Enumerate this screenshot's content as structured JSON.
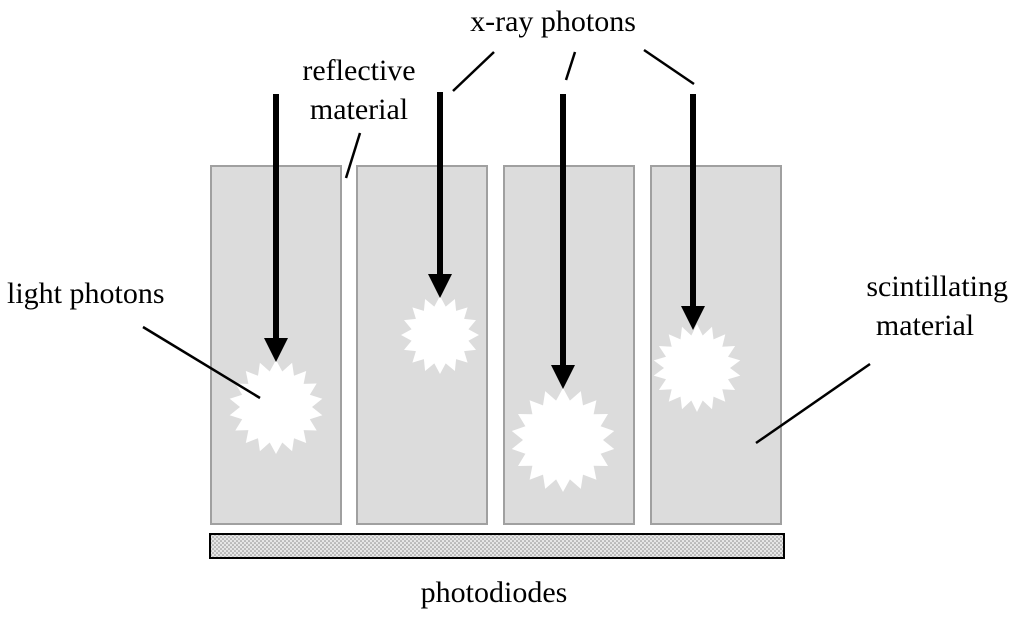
{
  "labels": {
    "xray_photons": "x-ray photons",
    "reflective_line1": "reflective",
    "reflective_line2": "material",
    "light_photons": "light photons",
    "scintillating_line1": "scintillating",
    "scintillating_line2": "material",
    "photodiodes": "photodiodes"
  },
  "colors": {
    "column_fill": "#dcdcdc",
    "column_stroke": "#a0a0a0",
    "arrow": "#000000",
    "flash": "#ffffff",
    "photodiode_fill": "#d8d8d8"
  },
  "icons": {
    "flash": "starburst-icon",
    "arrow": "arrow-down-icon"
  }
}
